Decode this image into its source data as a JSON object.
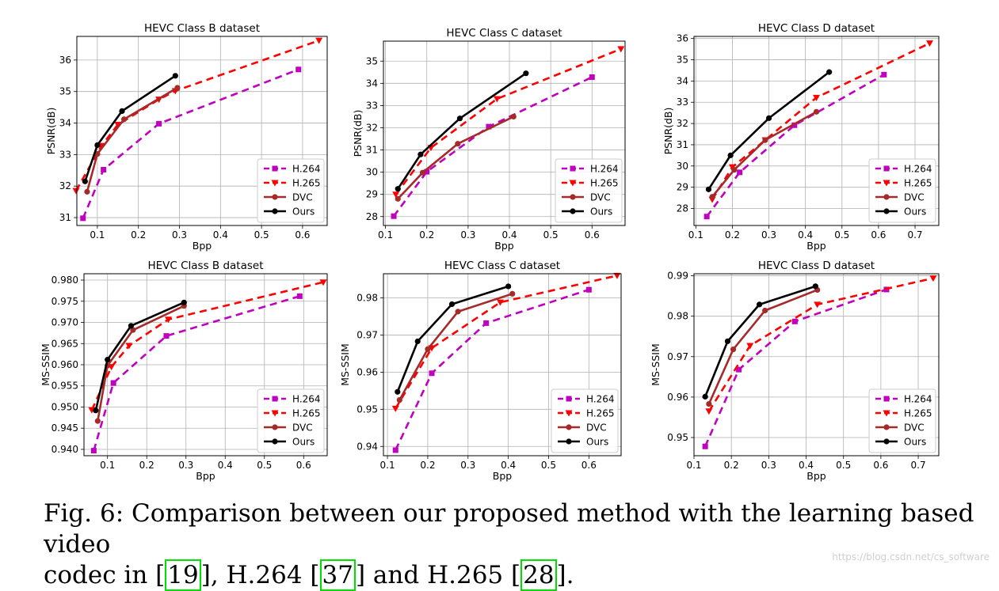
{
  "colors": {
    "H.264": "#bf00bf",
    "H.265": "#ff0000",
    "DVC": "#a52a2a",
    "Ours": "#000000"
  },
  "chart_data": [
    {
      "type": "line",
      "title": "HEVC Class B dataset",
      "xlabel": "Bpp",
      "ylabel": "PSNR(dB)",
      "xlim": [
        0.05,
        0.66
      ],
      "ylim": [
        30.75,
        36.75
      ],
      "xticks": [
        "0.1",
        "0.2",
        "0.3",
        "0.4",
        "0.5",
        "0.6"
      ],
      "yticks": [
        "31",
        "32",
        "33",
        "34",
        "35",
        "36"
      ],
      "legend": "lower-right",
      "grid": true,
      "series": [
        {
          "name": "H.264",
          "x": [
            0.065,
            0.115,
            0.25,
            0.59
          ],
          "y": [
            30.98,
            32.52,
            33.98,
            35.7
          ]
        },
        {
          "name": "H.265",
          "x": [
            0.048,
            0.11,
            0.15,
            0.25,
            0.29,
            0.64
          ],
          "y": [
            31.85,
            33.28,
            33.95,
            34.75,
            35.02,
            36.62
          ]
        },
        {
          "name": "DVC",
          "x": [
            0.075,
            0.1,
            0.165,
            0.295
          ],
          "y": [
            31.82,
            33.02,
            34.12,
            35.12
          ]
        },
        {
          "name": "Ours",
          "x": [
            0.07,
            0.1,
            0.16,
            0.29
          ],
          "y": [
            32.15,
            33.3,
            34.38,
            35.5
          ]
        }
      ]
    },
    {
      "type": "line",
      "title": "HEVC Class C dataset",
      "xlabel": "Bpp",
      "ylabel": "PSNR(dB)",
      "xlim": [
        0.095,
        0.68
      ],
      "ylim": [
        27.6,
        35.9
      ],
      "xticks": [
        "0.1",
        "0.2",
        "0.3",
        "0.4",
        "0.5",
        "0.6"
      ],
      "yticks": [
        "28",
        "29",
        "30",
        "31",
        "32",
        "33",
        "34",
        "35"
      ],
      "legend": "lower-right",
      "grid": true,
      "series": [
        {
          "name": "H.264",
          "x": [
            0.12,
            0.2,
            0.35,
            0.6
          ],
          "y": [
            28.02,
            30.02,
            32.05,
            34.28
          ]
        },
        {
          "name": "H.265",
          "x": [
            0.125,
            0.21,
            0.37,
            0.67
          ],
          "y": [
            29.0,
            31.1,
            33.3,
            35.55
          ]
        },
        {
          "name": "DVC",
          "x": [
            0.13,
            0.19,
            0.275,
            0.41
          ],
          "y": [
            28.8,
            29.98,
            31.28,
            32.5
          ]
        },
        {
          "name": "Ours",
          "x": [
            0.13,
            0.185,
            0.28,
            0.44
          ],
          "y": [
            29.25,
            30.8,
            32.42,
            34.45
          ]
        }
      ]
    },
    {
      "type": "line",
      "title": "HEVC Class D dataset",
      "xlabel": "Bpp",
      "ylabel": "PSNR(dB)",
      "xlim": [
        0.095,
        0.765
      ],
      "ylim": [
        27.2,
        36.1
      ],
      "xticks": [
        "0.1",
        "0.2",
        "0.3",
        "0.4",
        "0.5",
        "0.6",
        "0.7"
      ],
      "yticks": [
        "28",
        "29",
        "30",
        "31",
        "32",
        "33",
        "34",
        "35",
        "36"
      ],
      "legend": "lower-right",
      "grid": true,
      "series": [
        {
          "name": "H.264",
          "x": [
            0.13,
            0.22,
            0.37,
            0.615
          ],
          "y": [
            27.62,
            29.7,
            31.92,
            34.3
          ]
        },
        {
          "name": "H.265",
          "x": [
            0.145,
            0.2,
            0.29,
            0.43,
            0.74
          ],
          "y": [
            28.42,
            29.95,
            31.22,
            33.22,
            35.78
          ]
        },
        {
          "name": "DVC",
          "x": [
            0.145,
            0.205,
            0.29,
            0.43
          ],
          "y": [
            28.55,
            29.82,
            31.22,
            32.55
          ]
        },
        {
          "name": "Ours",
          "x": [
            0.135,
            0.195,
            0.3,
            0.465
          ],
          "y": [
            28.9,
            30.5,
            32.25,
            34.42
          ]
        }
      ]
    },
    {
      "type": "line",
      "title": "HEVC Class B dataset",
      "xlabel": "Bpp",
      "ylabel": "MS-SSIM",
      "xlim": [
        0.04,
        0.66
      ],
      "ylim": [
        0.9385,
        0.9815
      ],
      "xticks": [
        "0.1",
        "0.2",
        "0.3",
        "0.4",
        "0.5",
        "0.6"
      ],
      "yticks": [
        "0.940",
        "0.945",
        "0.950",
        "0.955",
        "0.960",
        "0.965",
        "0.970",
        "0.975",
        "0.980"
      ],
      "legend": "lower-right",
      "grid": true,
      "series": [
        {
          "name": "H.264",
          "x": [
            0.065,
            0.115,
            0.25,
            0.59
          ],
          "y": [
            0.9397,
            0.9557,
            0.9668,
            0.9762
          ]
        },
        {
          "name": "H.265",
          "x": [
            0.06,
            0.11,
            0.155,
            0.255,
            0.65
          ],
          "y": [
            0.9493,
            0.9595,
            0.9645,
            0.9707,
            0.9795
          ]
        },
        {
          "name": "DVC",
          "x": [
            0.075,
            0.1,
            0.165,
            0.295
          ],
          "y": [
            0.9467,
            0.9598,
            0.9682,
            0.9739
          ]
        },
        {
          "name": "Ours",
          "x": [
            0.07,
            0.1,
            0.16,
            0.295
          ],
          "y": [
            0.9492,
            0.9612,
            0.9692,
            0.9747
          ]
        }
      ]
    },
    {
      "type": "line",
      "title": "HEVC Class C dataset",
      "xlabel": "Bpp",
      "ylabel": "MS-SSIM",
      "xlim": [
        0.09,
        0.68
      ],
      "ylim": [
        0.9375,
        0.9865
      ],
      "xticks": [
        "0.1",
        "0.2",
        "0.3",
        "0.4",
        "0.5",
        "0.6"
      ],
      "yticks": [
        "0.94",
        "0.95",
        "0.96",
        "0.97",
        "0.98"
      ],
      "legend": "lower-right",
      "grid": true,
      "series": [
        {
          "name": "H.264",
          "x": [
            0.12,
            0.21,
            0.345,
            0.6
          ],
          "y": [
            0.939,
            0.9597,
            0.9732,
            0.9822
          ]
        },
        {
          "name": "H.265",
          "x": [
            0.12,
            0.21,
            0.38,
            0.67
          ],
          "y": [
            0.9502,
            0.9665,
            0.9788,
            0.986
          ]
        },
        {
          "name": "DVC",
          "x": [
            0.13,
            0.2,
            0.275,
            0.41
          ],
          "y": [
            0.9525,
            0.9662,
            0.9763,
            0.9811
          ]
        },
        {
          "name": "Ours",
          "x": [
            0.125,
            0.175,
            0.26,
            0.4
          ],
          "y": [
            0.9547,
            0.9683,
            0.9783,
            0.9831
          ]
        }
      ]
    },
    {
      "type": "line",
      "title": "HEVC Class D dataset",
      "xlabel": "Bpp",
      "ylabel": "MS-SSIM",
      "xlim": [
        0.1,
        0.755
      ],
      "ylim": [
        0.9455,
        0.9905
      ],
      "xticks": [
        "0.1",
        "0.2",
        "0.3",
        "0.4",
        "0.5",
        "0.6",
        "0.7"
      ],
      "yticks": [
        "0.95",
        "0.96",
        "0.97",
        "0.98",
        "0.99"
      ],
      "legend": "lower-right",
      "grid": true,
      "series": [
        {
          "name": "H.264",
          "x": [
            0.13,
            0.22,
            0.37,
            0.615
          ],
          "y": [
            0.9478,
            0.9668,
            0.9787,
            0.9866
          ]
        },
        {
          "name": "H.265",
          "x": [
            0.14,
            0.25,
            0.43,
            0.74
          ],
          "y": [
            0.9565,
            0.9727,
            0.9829,
            0.9894
          ]
        },
        {
          "name": "DVC",
          "x": [
            0.14,
            0.205,
            0.29,
            0.43
          ],
          "y": [
            0.9583,
            0.9718,
            0.9814,
            0.9865
          ]
        },
        {
          "name": "Ours",
          "x": [
            0.13,
            0.19,
            0.275,
            0.425
          ],
          "y": [
            0.9601,
            0.9738,
            0.9829,
            0.9874
          ]
        }
      ]
    }
  ],
  "caption": {
    "line1": "Fig. 6: Comparison between our proposed method with the learning based video",
    "part1": "codec in [",
    "ref1": "19",
    "part2": "], H.264 [",
    "ref2": "37",
    "part3": "] and H.265 [",
    "ref3": "28",
    "part4": "]."
  },
  "watermark": "https://blog.csdn.net/cs_software"
}
